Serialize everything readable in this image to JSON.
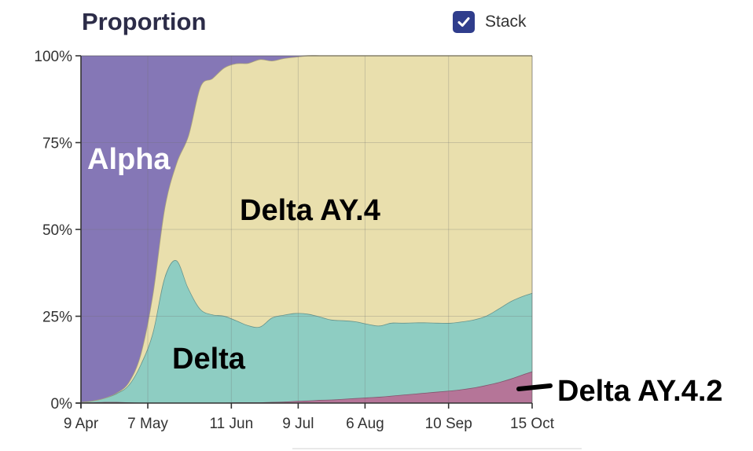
{
  "header": {
    "title": "Proportion"
  },
  "controls": {
    "stack_label": "Stack",
    "stack_checked": true
  },
  "chart_data": {
    "type": "area",
    "stacked": true,
    "title": "Proportion",
    "xlabel": "",
    "ylabel": "",
    "ylim": [
      0,
      1
    ],
    "y_ticks": [
      {
        "value": 0,
        "label": "0%"
      },
      {
        "value": 0.25,
        "label": "25%"
      },
      {
        "value": 0.5,
        "label": "50%"
      },
      {
        "value": 0.75,
        "label": "75%"
      },
      {
        "value": 1,
        "label": "100%"
      }
    ],
    "x_ticks": [
      "9 Apr",
      "7 May",
      "11 Jun",
      "9 Jul",
      "6 Aug",
      "10 Sep",
      "15 Oct"
    ],
    "x": [
      "2021-04-09",
      "2021-04-14",
      "2021-04-19",
      "2021-04-24",
      "2021-04-29",
      "2021-05-04",
      "2021-05-09",
      "2021-05-14",
      "2021-05-19",
      "2021-05-24",
      "2021-05-29",
      "2021-06-03",
      "2021-06-08",
      "2021-06-13",
      "2021-06-18",
      "2021-06-23",
      "2021-06-28",
      "2021-07-03",
      "2021-07-08",
      "2021-07-13",
      "2021-07-18",
      "2021-07-23",
      "2021-07-28",
      "2021-08-02",
      "2021-08-07",
      "2021-08-12",
      "2021-08-17",
      "2021-08-22",
      "2021-08-27",
      "2021-09-01",
      "2021-09-06",
      "2021-09-11",
      "2021-09-16",
      "2021-09-21",
      "2021-09-26",
      "2021-10-01",
      "2021-10-06",
      "2021-10-11",
      "2021-10-15"
    ],
    "series": [
      {
        "name": "Delta AY.4.2",
        "color": "#b57598",
        "values": [
          0.001,
          0.002,
          0.003,
          0.003,
          0.002,
          0.001,
          0.001,
          0.001,
          0.001,
          0.001,
          0.001,
          0.001,
          0.001,
          0.002,
          0.002,
          0.002,
          0.003,
          0.004,
          0.006,
          0.007,
          0.009,
          0.01,
          0.012,
          0.014,
          0.016,
          0.018,
          0.021,
          0.024,
          0.027,
          0.03,
          0.033,
          0.036,
          0.04,
          0.045,
          0.052,
          0.06,
          0.07,
          0.082,
          0.091
        ]
      },
      {
        "name": "Delta",
        "color": "#8ecdc2",
        "values": [
          0.002,
          0.005,
          0.012,
          0.025,
          0.05,
          0.11,
          0.2,
          0.36,
          0.41,
          0.33,
          0.27,
          0.254,
          0.25,
          0.236,
          0.222,
          0.218,
          0.243,
          0.25,
          0.253,
          0.25,
          0.24,
          0.23,
          0.226,
          0.221,
          0.212,
          0.205,
          0.21,
          0.207,
          0.205,
          0.202,
          0.198,
          0.195,
          0.195,
          0.196,
          0.2,
          0.212,
          0.223,
          0.226,
          0.226
        ]
      },
      {
        "name": "Delta AY.4",
        "color": "#e9dfad",
        "values": [
          0,
          0,
          0,
          0.002,
          0.008,
          0.03,
          0.11,
          0.2,
          0.28,
          0.44,
          0.64,
          0.68,
          0.715,
          0.74,
          0.755,
          0.77,
          0.74,
          0.739,
          0.738,
          0.743,
          0.751,
          0.76,
          0.762,
          0.765,
          0.772,
          0.777,
          0.769,
          0.769,
          0.768,
          0.768,
          0.769,
          0.769,
          0.765,
          0.759,
          0.748,
          0.728,
          0.707,
          0.692,
          0.683
        ]
      },
      {
        "name": "Alpha",
        "color": "#8577b6",
        "values": [
          0.997,
          0.993,
          0.985,
          0.97,
          0.94,
          0.859,
          0.689,
          0.439,
          0.309,
          0.229,
          0.089,
          0.065,
          0.034,
          0.022,
          0.021,
          0.01,
          0.014,
          0.007,
          0.003,
          0,
          0,
          0,
          0,
          0,
          0,
          0,
          0,
          0,
          0,
          0,
          0,
          0,
          0,
          0,
          0,
          0,
          0,
          0,
          0
        ]
      }
    ],
    "annotations": [
      {
        "text": "Alpha",
        "series": "Alpha"
      },
      {
        "text": "Delta AY.4",
        "series": "Delta AY.4"
      },
      {
        "text": "Delta",
        "series": "Delta"
      },
      {
        "text": "Delta AY.4.2",
        "series": "Delta AY.4.2"
      }
    ],
    "grid": true,
    "legend": "none"
  }
}
